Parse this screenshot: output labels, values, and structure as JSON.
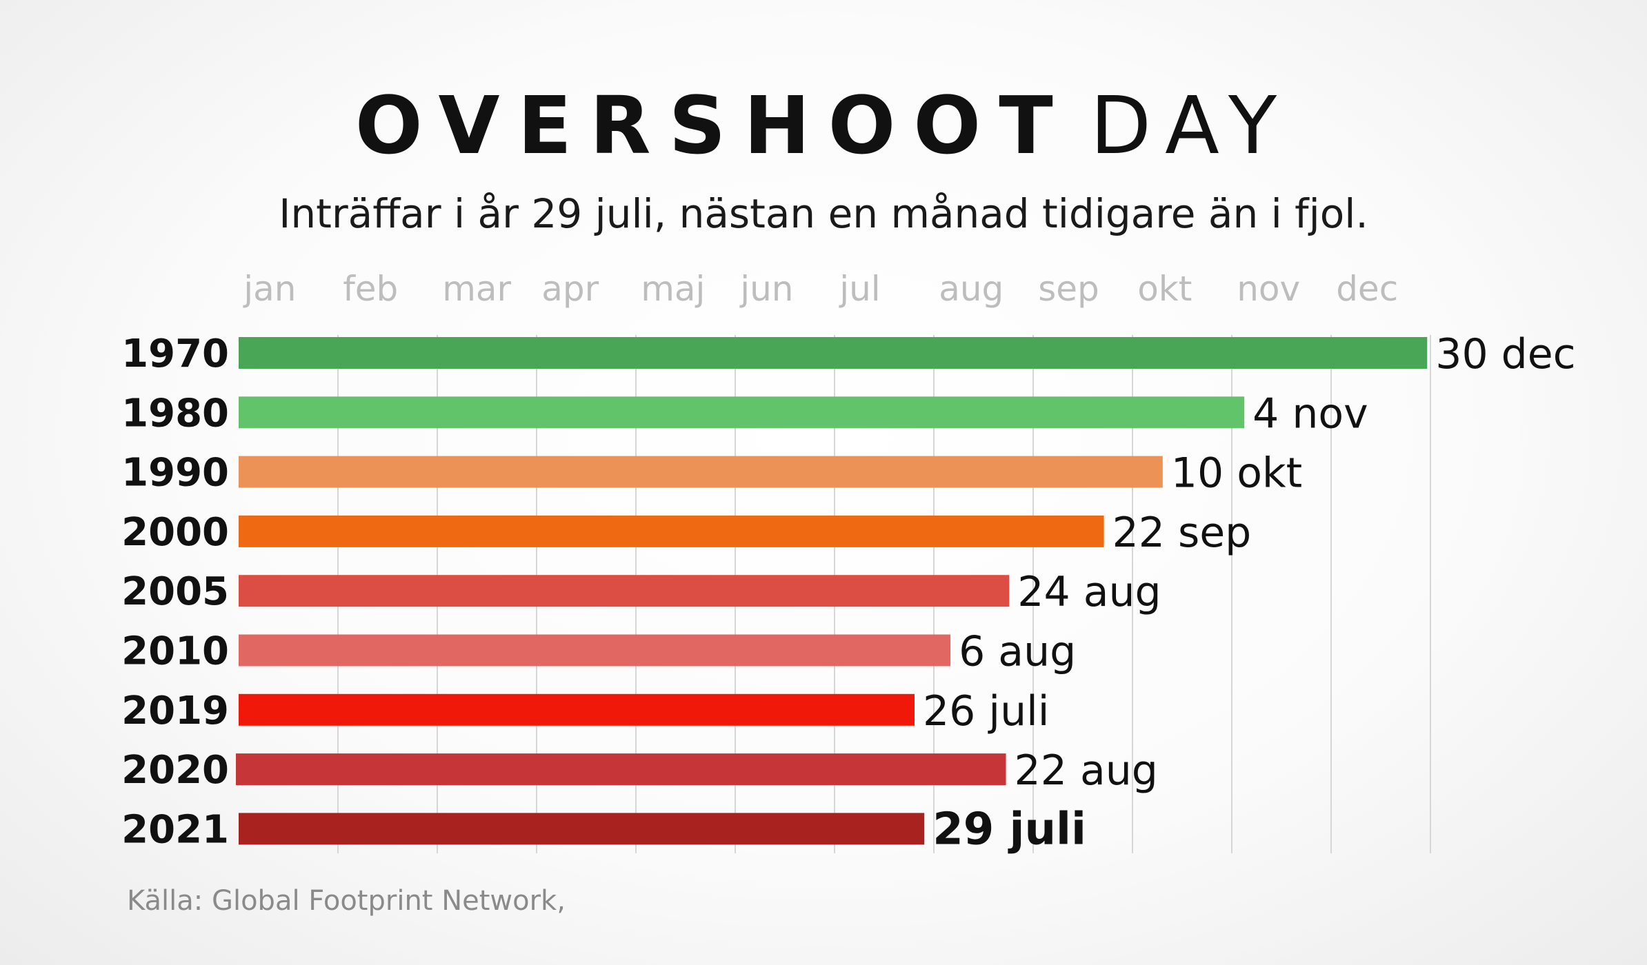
{
  "header": {
    "title_bold": "OVERSHOOT",
    "title_light": "DAY",
    "subtitle": "Inträffar i år 29 juli, nästan en månad tidigare än i fjol."
  },
  "footer": {
    "source": "Källa: Global Footprint Network,"
  },
  "chart_data": {
    "type": "bar",
    "orientation": "horizontal",
    "title": "OVERSHOOT DAY",
    "subtitle": "Inträffar i år 29 juli, nästan en månad tidigare än i fjol.",
    "x_ticks": [
      "jan",
      "feb",
      "mar",
      "apr",
      "maj",
      "jun",
      "jul",
      "aug",
      "sep",
      "okt",
      "nov",
      "dec"
    ],
    "x_unit": "day_of_year",
    "xlim": [
      1,
      365
    ],
    "grid": true,
    "categories": [
      "1970",
      "1980",
      "1990",
      "2000",
      "2005",
      "2010",
      "2019",
      "2020",
      "2021"
    ],
    "values": [
      364,
      308,
      283,
      265,
      236,
      218,
      207,
      235,
      210
    ],
    "labels": [
      "30 dec",
      "4 nov",
      "10 okt",
      "22 sep",
      "24 aug",
      "6 aug",
      "26 juli",
      "22 aug",
      "29 juli"
    ],
    "highlight": "2021",
    "colors": [
      "#4aa657",
      "#62c46a",
      "#ed9256",
      "#ef6913",
      "#dc4d44",
      "#e06762",
      "#f01808",
      "#c63638",
      "#a82220"
    ]
  }
}
